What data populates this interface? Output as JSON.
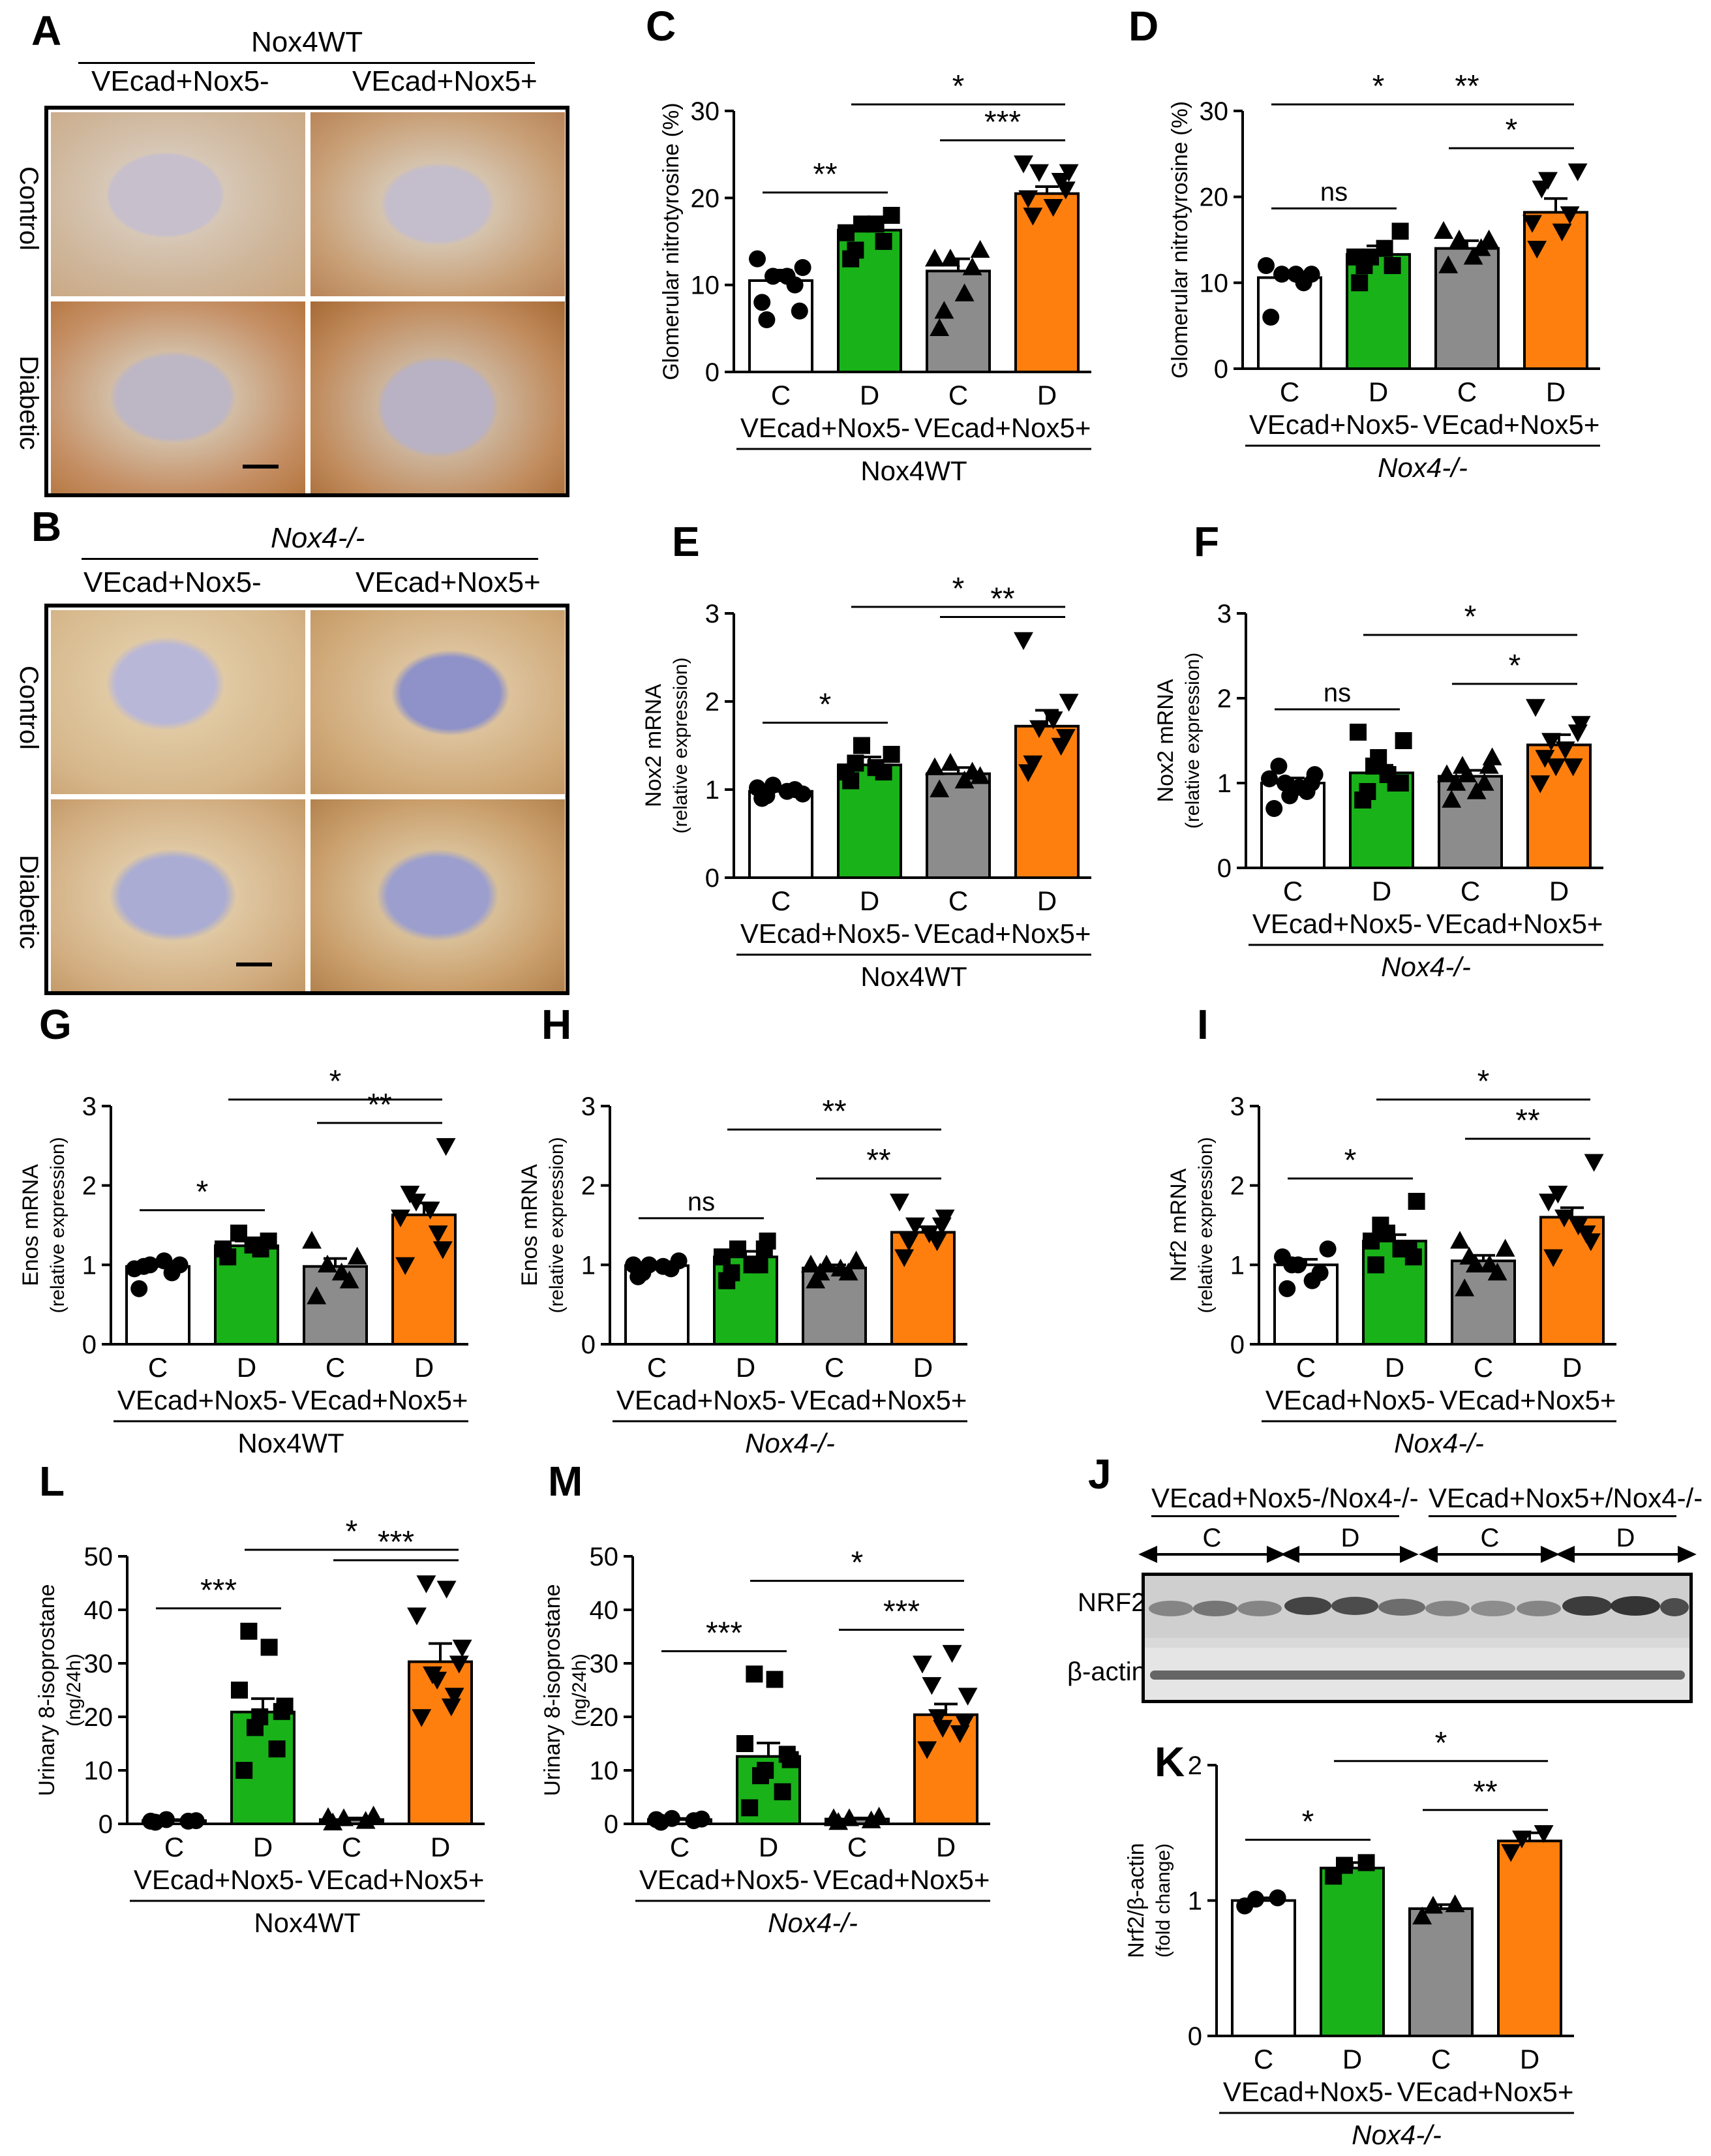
{
  "micro": {
    "A": {
      "letter": "A",
      "genotype": "Nox4WT",
      "col1": "VEcad+Nox5-",
      "col2": "VEcad+Nox5+",
      "row1": "Control",
      "row2": "Diabetic"
    },
    "B": {
      "letter": "B",
      "genotype": "Nox4-/-",
      "col1": "VEcad+Nox5-",
      "col2": "VEcad+Nox5+",
      "row1": "Control",
      "row2": "Diabetic"
    }
  },
  "western": {
    "letter": "J",
    "group1": "VEcad+Nox5-/Nox4-/-",
    "group2": "VEcad+Nox5+/Nox4-/-",
    "lanes": [
      "C",
      "D",
      "C",
      "D"
    ],
    "band1": "NRF2",
    "band2": "β-actin"
  },
  "colors": {
    "white": "#ffffff",
    "green": "#19b219",
    "gray": "#8c8c8c",
    "orange": "#ff7f0e"
  },
  "chart_data": [
    {
      "panel": "C",
      "type": "bar",
      "ylabel": "Glomerular nitrotyrosine (%)",
      "yticks": [
        0,
        10,
        20,
        30
      ],
      "ylim": [
        0,
        30
      ],
      "categories": [
        "C",
        "D",
        "C",
        "D"
      ],
      "groups": [
        "VEcad+Nox5-",
        "VEcad+Nox5+"
      ],
      "genotype": "Nox4WT",
      "values": [
        10.5,
        16.3,
        11.6,
        20.5
      ],
      "sem": [
        1.2,
        1.2,
        1.4,
        0.8
      ],
      "points": [
        [
          8,
          10,
          11,
          12,
          13,
          11,
          6,
          7
        ],
        [
          13,
          15,
          17,
          18,
          16,
          17,
          14
        ],
        [
          5,
          12,
          13,
          14,
          13,
          9,
          7
        ],
        [
          20,
          22,
          23,
          23,
          24,
          19,
          18,
          21
        ]
      ],
      "sig": [
        {
          "a": 0,
          "b": 1,
          "label": "**"
        },
        {
          "a": 2,
          "b": 3,
          "label": "***"
        },
        {
          "a": 1,
          "b": 3,
          "label": "*"
        }
      ]
    },
    {
      "panel": "D",
      "type": "bar",
      "ylabel": "Glomerular nitrotyrosine (%)",
      "yticks": [
        0,
        10,
        20,
        30
      ],
      "ylim": [
        0,
        30
      ],
      "categories": [
        "C",
        "D",
        "C",
        "D"
      ],
      "groups": [
        "VEcad+Nox5-",
        "VEcad+Nox5+"
      ],
      "genotype": "Nox4-/-",
      "values": [
        10.6,
        13.3,
        14.0,
        18.2
      ],
      "sem": [
        0.8,
        1.0,
        0.9,
        1.6
      ],
      "points": [
        [
          6,
          10,
          11,
          11,
          12,
          11
        ],
        [
          10,
          12,
          13,
          16,
          13,
          14,
          12
        ],
        [
          12,
          14,
          15,
          15,
          16,
          13
        ],
        [
          14,
          18,
          22,
          23,
          17,
          16,
          21
        ]
      ],
      "sig": [
        {
          "a": 0,
          "b": 1,
          "label": "ns"
        },
        {
          "a": 2,
          "b": 3,
          "label": "*"
        },
        {
          "a": 0,
          "b": 2,
          "label": "*"
        },
        {
          "a": 1,
          "b": 3,
          "label": "**"
        }
      ]
    },
    {
      "panel": "E",
      "type": "bar",
      "ylabel": "Nox2 mRNA",
      "ylabel2": "(relative expression)",
      "yticks": [
        0,
        1,
        2,
        3
      ],
      "ylim": [
        0,
        3
      ],
      "categories": [
        "C",
        "D",
        "C",
        "D"
      ],
      "groups": [
        "VEcad+Nox5-",
        "VEcad+Nox5+"
      ],
      "genotype": "Nox4WT",
      "values": [
        0.98,
        1.28,
        1.18,
        1.72
      ],
      "sem": [
        0.04,
        0.09,
        0.07,
        0.18
      ],
      "points": [
        [
          0.9,
          1.0,
          1.05,
          0.95,
          1.02,
          0.98,
          0.93
        ],
        [
          1.1,
          1.2,
          1.5,
          1.4,
          1.2,
          1.25,
          1.3
        ],
        [
          1.0,
          1.2,
          1.3,
          1.15,
          1.25,
          1.1
        ],
        [
          1.2,
          1.5,
          1.7,
          2.0,
          2.7,
          1.8,
          1.3,
          1.6
        ]
      ],
      "sig": [
        {
          "a": 0,
          "b": 1,
          "label": "*"
        },
        {
          "a": 2,
          "b": 3,
          "label": "**"
        },
        {
          "a": 1,
          "b": 3,
          "label": "*"
        }
      ]
    },
    {
      "panel": "F",
      "type": "bar",
      "ylabel": "Nox2 mRNA",
      "ylabel2": "(relative expression)",
      "yticks": [
        0,
        1,
        2,
        3
      ],
      "ylim": [
        0,
        3
      ],
      "categories": [
        "C",
        "D",
        "C",
        "D"
      ],
      "groups": [
        "VEcad+Nox5-",
        "VEcad+Nox5+"
      ],
      "genotype": "Nox4-/-",
      "values": [
        1.0,
        1.12,
        1.08,
        1.45
      ],
      "sem": [
        0.06,
        0.09,
        0.07,
        0.12
      ],
      "points": [
        [
          0.7,
          0.9,
          1.0,
          1.1,
          1.05,
          0.95,
          1.2,
          1.0,
          0.85
        ],
        [
          0.8,
          1.0,
          1.2,
          1.5,
          1.6,
          1.1,
          0.9,
          1.0,
          1.3
        ],
        [
          0.8,
          1.0,
          1.2,
          1.3,
          1.1,
          0.9,
          1.0,
          1.2,
          1.1
        ],
        [
          1.0,
          1.2,
          1.5,
          1.7,
          1.9,
          1.4,
          1.3,
          1.6,
          1.2
        ]
      ],
      "sig": [
        {
          "a": 0,
          "b": 1,
          "label": "ns"
        },
        {
          "a": 2,
          "b": 3,
          "label": "*"
        },
        {
          "a": 1,
          "b": 3,
          "label": "*"
        }
      ]
    },
    {
      "panel": "G",
      "type": "bar",
      "ylabel": "Enos mRNA",
      "ylabel2": "(relative expression)",
      "yticks": [
        0,
        1,
        2,
        3
      ],
      "ylim": [
        0,
        3
      ],
      "categories": [
        "C",
        "D",
        "C",
        "D"
      ],
      "groups": [
        "VEcad+Nox5-",
        "VEcad+Nox5+"
      ],
      "genotype": "Nox4WT",
      "values": [
        0.98,
        1.24,
        0.98,
        1.63
      ],
      "sem": [
        0.04,
        0.06,
        0.1,
        0.15
      ],
      "points": [
        [
          0.7,
          0.9,
          1.0,
          1.0,
          0.95,
          1.05,
          0.98
        ],
        [
          1.1,
          1.2,
          1.4,
          1.3,
          1.2,
          1.25
        ],
        [
          0.6,
          0.8,
          1.0,
          1.1,
          1.3,
          0.9
        ],
        [
          1.0,
          1.4,
          1.8,
          2.5,
          1.6,
          1.7,
          1.9,
          1.2
        ]
      ],
      "sig": [
        {
          "a": 0,
          "b": 1,
          "label": "*"
        },
        {
          "a": 2,
          "b": 3,
          "label": "**"
        },
        {
          "a": 1,
          "b": 3,
          "label": "*"
        }
      ]
    },
    {
      "panel": "H",
      "type": "bar",
      "ylabel": "Enos mRNA",
      "ylabel2": "(relative expression)",
      "yticks": [
        0,
        1,
        2,
        3
      ],
      "ylim": [
        0,
        3
      ],
      "categories": [
        "C",
        "D",
        "C",
        "D"
      ],
      "groups": [
        "VEcad+Nox5-",
        "VEcad+Nox5+"
      ],
      "genotype": "Nox4-/-",
      "values": [
        0.99,
        1.1,
        0.96,
        1.41
      ],
      "sem": [
        0.03,
        0.07,
        0.04,
        0.07
      ],
      "points": [
        [
          0.85,
          0.95,
          1.0,
          1.05,
          1.0,
          0.98,
          0.9
        ],
        [
          0.8,
          1.0,
          1.2,
          1.3,
          1.1,
          1.0,
          0.9,
          1.2
        ],
        [
          0.8,
          0.9,
          1.0,
          1.05,
          1.0,
          0.95,
          0.9
        ],
        [
          1.1,
          1.3,
          1.5,
          1.6,
          1.8,
          1.4,
          1.3,
          1.5
        ]
      ],
      "sig": [
        {
          "a": 0,
          "b": 1,
          "label": "ns"
        },
        {
          "a": 2,
          "b": 3,
          "label": "**"
        },
        {
          "a": 1,
          "b": 3,
          "label": "**"
        }
      ]
    },
    {
      "panel": "I",
      "type": "bar",
      "ylabel": "Nrf2 mRNA",
      "ylabel2": "(relative expression)",
      "yticks": [
        0,
        1,
        2,
        3
      ],
      "ylim": [
        0,
        3
      ],
      "categories": [
        "C",
        "D",
        "C",
        "D"
      ],
      "groups": [
        "VEcad+Nox5-",
        "VEcad+Nox5+"
      ],
      "genotype": "Nox4-/-",
      "values": [
        1.0,
        1.3,
        1.05,
        1.6
      ],
      "sem": [
        0.07,
        0.08,
        0.07,
        0.12
      ],
      "points": [
        [
          0.7,
          0.9,
          1.0,
          1.2,
          1.1,
          0.8,
          1.0
        ],
        [
          1.0,
          1.2,
          1.4,
          1.8,
          1.3,
          1.2,
          1.5,
          1.1
        ],
        [
          0.7,
          0.9,
          1.0,
          1.2,
          1.3,
          1.0,
          1.1
        ],
        [
          1.1,
          1.4,
          1.6,
          2.3,
          1.8,
          1.5,
          1.9,
          1.3
        ]
      ],
      "sig": [
        {
          "a": 0,
          "b": 1,
          "label": "*"
        },
        {
          "a": 2,
          "b": 3,
          "label": "**"
        },
        {
          "a": 1,
          "b": 3,
          "label": "*"
        }
      ]
    },
    {
      "panel": "L",
      "type": "bar",
      "ylabel": "Urinary 8-isoprostane",
      "ylabel2": "(ng/24h)",
      "yticks": [
        0,
        10,
        20,
        30,
        40,
        50
      ],
      "ylim": [
        0,
        50
      ],
      "categories": [
        "C",
        "D",
        "C",
        "D"
      ],
      "groups": [
        "VEcad+Nox5-",
        "VEcad+Nox5+"
      ],
      "genotype": "Nox4WT",
      "values": [
        0.6,
        20.9,
        0.8,
        30.3
      ],
      "sem": [
        0.2,
        2.5,
        0.3,
        3.4
      ],
      "points": [
        [
          0.3,
          0.5,
          0.8,
          0.6,
          0.5
        ],
        [
          10,
          14,
          18,
          22,
          25,
          33,
          36,
          21,
          20
        ],
        [
          0.2,
          0.5,
          1.0,
          1.5,
          1.2
        ],
        [
          20,
          24,
          28,
          33,
          39,
          44,
          45,
          30,
          27,
          22
        ]
      ],
      "sig": [
        {
          "a": 0,
          "b": 1,
          "label": "***"
        },
        {
          "a": 2,
          "b": 3,
          "label": "***"
        },
        {
          "a": 1,
          "b": 3,
          "label": "*"
        }
      ]
    },
    {
      "panel": "M",
      "type": "bar",
      "ylabel": "Urinary 8-isoprostane",
      "ylabel2": "(ng/24h)",
      "yticks": [
        0,
        10,
        20,
        30,
        40,
        50
      ],
      "ylim": [
        0,
        50
      ],
      "categories": [
        "C",
        "D",
        "C",
        "D"
      ],
      "groups": [
        "VEcad+Nox5-",
        "VEcad+Nox5+"
      ],
      "genotype": "Nox4-/-",
      "values": [
        0.8,
        12.6,
        0.9,
        20.4
      ],
      "sem": [
        0.2,
        2.5,
        0.2,
        2.0
      ],
      "points": [
        [
          0.3,
          0.6,
          1.0,
          0.9,
          0.8
        ],
        [
          3,
          6,
          9,
          12,
          15,
          27,
          28,
          13,
          10
        ],
        [
          0.3,
          0.6,
          1.0,
          1.3,
          1.0
        ],
        [
          14,
          17,
          20,
          24,
          30,
          32,
          26,
          19,
          18
        ]
      ],
      "sig": [
        {
          "a": 0,
          "b": 1,
          "label": "***"
        },
        {
          "a": 2,
          "b": 3,
          "label": "***"
        },
        {
          "a": 1,
          "b": 3,
          "label": "*"
        }
      ]
    },
    {
      "panel": "K",
      "type": "bar",
      "ylabel": "Nrf2/β-actin",
      "ylabel2": "(fold change)",
      "yticks": [
        0,
        1,
        2
      ],
      "ylim": [
        0,
        2
      ],
      "categories": [
        "C",
        "D",
        "C",
        "D"
      ],
      "groups": [
        "VEcad+Nox5-",
        "VEcad+Nox5+"
      ],
      "genotype": "Nox4-/-",
      "values": [
        1.0,
        1.24,
        0.94,
        1.44
      ],
      "sem": [
        0.02,
        0.04,
        0.03,
        0.06
      ],
      "points": [
        [
          0.96,
          1.02,
          1.01
        ],
        [
          1.18,
          1.28,
          1.26
        ],
        [
          0.88,
          0.97,
          0.96
        ],
        [
          1.36,
          1.5,
          1.46
        ]
      ],
      "sig": [
        {
          "a": 0,
          "b": 1,
          "label": "*"
        },
        {
          "a": 2,
          "b": 3,
          "label": "**"
        },
        {
          "a": 1,
          "b": 3,
          "label": "*"
        }
      ]
    }
  ]
}
